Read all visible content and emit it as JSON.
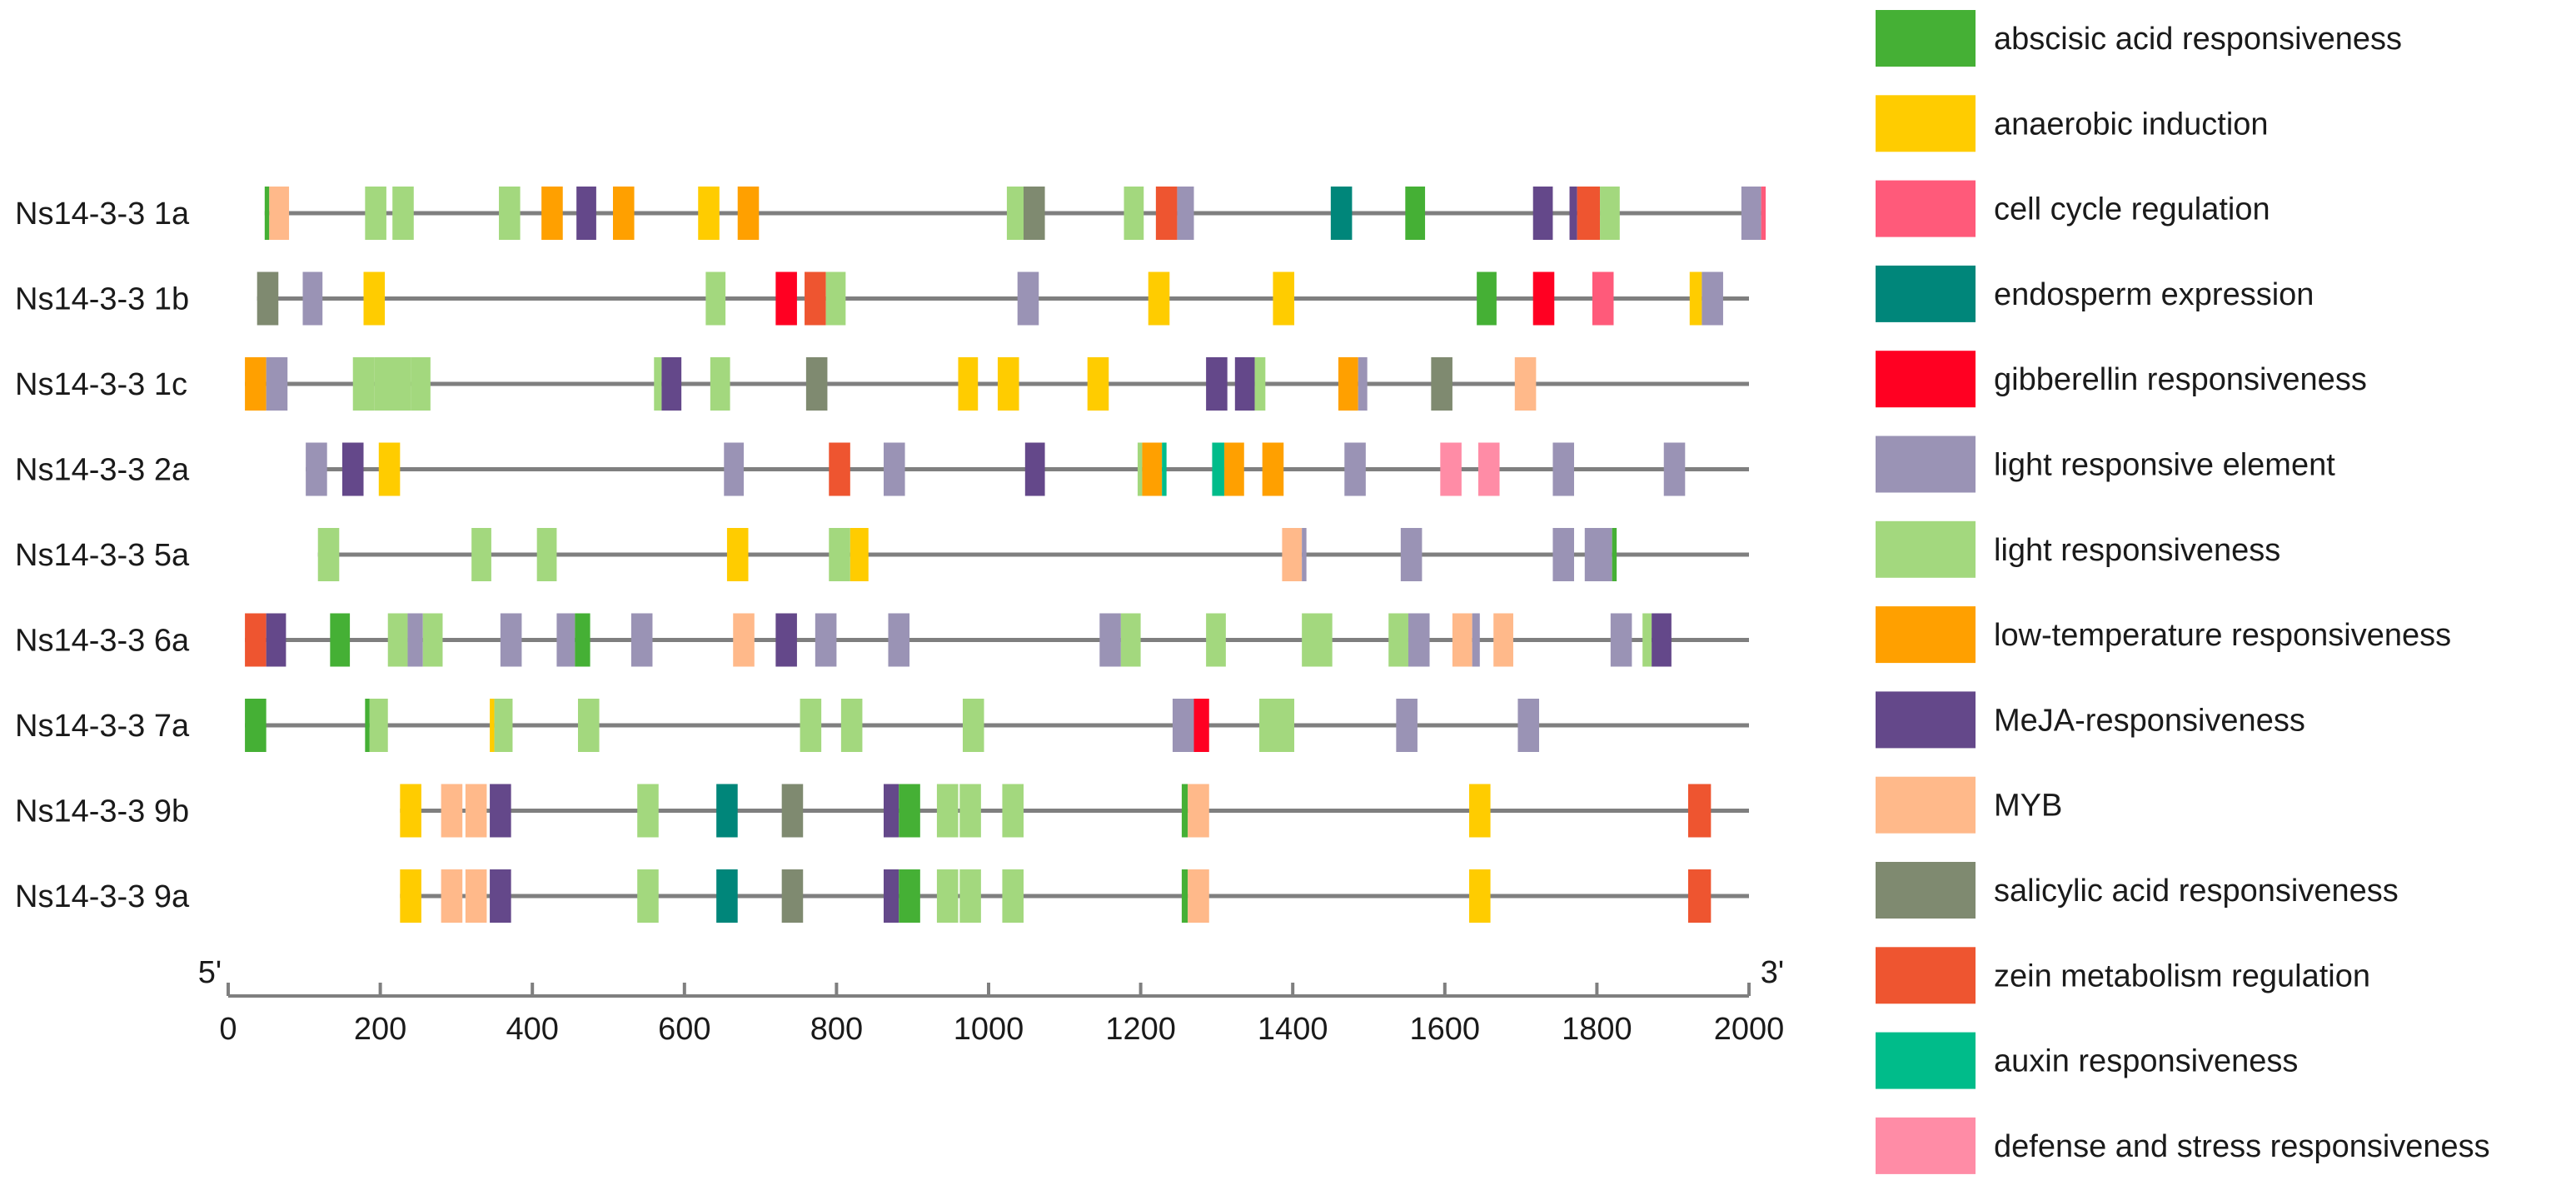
{
  "chart_data": {
    "type": "gene-element-map",
    "title": "",
    "xlabel": "",
    "ylabel": "",
    "xlim": [
      0,
      2000
    ],
    "x_ticks": [
      "0",
      "200",
      "400",
      "600",
      "800",
      "1000",
      "1200",
      "1400",
      "1600",
      "1800",
      "2000"
    ],
    "five_prime_label": "5'",
    "three_prime_label": "3'",
    "legend": [
      {
        "key": "aba",
        "label": "abscisic acid responsiveness",
        "color": "#45B035"
      },
      {
        "key": "anaer",
        "label": "anaerobic induction",
        "color": "#FFCC00"
      },
      {
        "key": "cell",
        "label": "cell cycle regulation",
        "color": "#FF5A7A"
      },
      {
        "key": "endo",
        "label": "endosperm expression",
        "color": "#00867A"
      },
      {
        "key": "gib",
        "label": "gibberellin responsiveness",
        "color": "#FF0022"
      },
      {
        "key": "lre",
        "label": "light responsive element",
        "color": "#9A93B5"
      },
      {
        "key": "light",
        "label": "light responsiveness",
        "color": "#A3D87E"
      },
      {
        "key": "lowt",
        "label": "low-temperature responsiveness",
        "color": "#FFA000"
      },
      {
        "key": "meja",
        "label": "MeJA-responsiveness",
        "color": "#64488A"
      },
      {
        "key": "myb",
        "label": "MYB",
        "color": "#FFB98A"
      },
      {
        "key": "sa",
        "label": "salicylic acid responsiveness",
        "color": "#7F8A70"
      },
      {
        "key": "zein",
        "label": "zein metabolism regulation",
        "color": "#EE5530"
      },
      {
        "key": "auxin",
        "label": "auxin responsiveness",
        "color": "#00BC8A"
      },
      {
        "key": "defense",
        "label": "defense and stress responsiveness",
        "color": "#FF8CA6"
      }
    ],
    "rows": [
      {
        "name": "Ns14-3-3 1a",
        "start": 48,
        "end": 2020,
        "elements": [
          {
            "type": "aba",
            "start": 48,
            "end": 54
          },
          {
            "type": "myb",
            "start": 54,
            "end": 80
          },
          {
            "type": "light",
            "start": 180,
            "end": 208
          },
          {
            "type": "light",
            "start": 216,
            "end": 244
          },
          {
            "type": "light",
            "start": 356,
            "end": 384
          },
          {
            "type": "lowt",
            "start": 412,
            "end": 440
          },
          {
            "type": "meja",
            "start": 458,
            "end": 484
          },
          {
            "type": "lowt",
            "start": 506,
            "end": 534
          },
          {
            "type": "anaer",
            "start": 618,
            "end": 646
          },
          {
            "type": "lowt",
            "start": 670,
            "end": 698
          },
          {
            "type": "light",
            "start": 1024,
            "end": 1046
          },
          {
            "type": "sa",
            "start": 1046,
            "end": 1074
          },
          {
            "type": "light",
            "start": 1178,
            "end": 1204
          },
          {
            "type": "zein",
            "start": 1220,
            "end": 1248
          },
          {
            "type": "lre",
            "start": 1248,
            "end": 1270
          },
          {
            "type": "endo",
            "start": 1450,
            "end": 1478
          },
          {
            "type": "aba",
            "start": 1548,
            "end": 1574
          },
          {
            "type": "meja",
            "start": 1716,
            "end": 1742
          },
          {
            "type": "meja",
            "start": 1764,
            "end": 1774
          },
          {
            "type": "zein",
            "start": 1774,
            "end": 1804
          },
          {
            "type": "light",
            "start": 1804,
            "end": 1830
          },
          {
            "type": "lre",
            "start": 1990,
            "end": 2016
          },
          {
            "type": "cell",
            "start": 2016,
            "end": 2022
          }
        ]
      },
      {
        "name": "Ns14-3-3 1b",
        "start": 38,
        "end": 2000,
        "elements": [
          {
            "type": "sa",
            "start": 38,
            "end": 66
          },
          {
            "type": "lre",
            "start": 98,
            "end": 124
          },
          {
            "type": "anaer",
            "start": 178,
            "end": 206
          },
          {
            "type": "light",
            "start": 628,
            "end": 654
          },
          {
            "type": "gib",
            "start": 720,
            "end": 748
          },
          {
            "type": "zein",
            "start": 758,
            "end": 786
          },
          {
            "type": "light",
            "start": 786,
            "end": 812
          },
          {
            "type": "lre",
            "start": 1038,
            "end": 1066
          },
          {
            "type": "anaer",
            "start": 1210,
            "end": 1238
          },
          {
            "type": "anaer",
            "start": 1374,
            "end": 1402
          },
          {
            "type": "aba",
            "start": 1642,
            "end": 1668
          },
          {
            "type": "gib",
            "start": 1716,
            "end": 1744
          },
          {
            "type": "cell",
            "start": 1794,
            "end": 1822
          },
          {
            "type": "anaer",
            "start": 1922,
            "end": 1938
          },
          {
            "type": "lre",
            "start": 1938,
            "end": 1966
          }
        ]
      },
      {
        "name": "Ns14-3-3 1c",
        "start": 22,
        "end": 2000,
        "elements": [
          {
            "type": "lowt",
            "start": 22,
            "end": 50
          },
          {
            "type": "lre",
            "start": 50,
            "end": 78
          },
          {
            "type": "light",
            "start": 164,
            "end": 192
          },
          {
            "type": "light",
            "start": 192,
            "end": 240
          },
          {
            "type": "light",
            "start": 240,
            "end": 266
          },
          {
            "type": "light",
            "start": 560,
            "end": 570
          },
          {
            "type": "meja",
            "start": 570,
            "end": 596
          },
          {
            "type": "light",
            "start": 634,
            "end": 660
          },
          {
            "type": "sa",
            "start": 760,
            "end": 788
          },
          {
            "type": "anaer",
            "start": 960,
            "end": 986
          },
          {
            "type": "anaer",
            "start": 1012,
            "end": 1040
          },
          {
            "type": "anaer",
            "start": 1130,
            "end": 1158
          },
          {
            "type": "meja",
            "start": 1286,
            "end": 1314
          },
          {
            "type": "meja",
            "start": 1324,
            "end": 1350
          },
          {
            "type": "light",
            "start": 1350,
            "end": 1364
          },
          {
            "type": "lowt",
            "start": 1460,
            "end": 1486
          },
          {
            "type": "lre",
            "start": 1486,
            "end": 1498
          },
          {
            "type": "sa",
            "start": 1582,
            "end": 1610
          },
          {
            "type": "myb",
            "start": 1692,
            "end": 1720
          }
        ]
      },
      {
        "name": "Ns14-3-3 2a",
        "start": 102,
        "end": 2000,
        "elements": [
          {
            "type": "lre",
            "start": 102,
            "end": 130
          },
          {
            "type": "meja",
            "start": 150,
            "end": 178
          },
          {
            "type": "anaer",
            "start": 198,
            "end": 226
          },
          {
            "type": "lre",
            "start": 652,
            "end": 678
          },
          {
            "type": "zein",
            "start": 790,
            "end": 818
          },
          {
            "type": "lre",
            "start": 862,
            "end": 890
          },
          {
            "type": "meja",
            "start": 1048,
            "end": 1074
          },
          {
            "type": "light",
            "start": 1196,
            "end": 1202
          },
          {
            "type": "lowt",
            "start": 1202,
            "end": 1228
          },
          {
            "type": "auxin",
            "start": 1228,
            "end": 1234
          },
          {
            "type": "auxin",
            "start": 1294,
            "end": 1310
          },
          {
            "type": "lowt",
            "start": 1310,
            "end": 1336
          },
          {
            "type": "lowt",
            "start": 1360,
            "end": 1388
          },
          {
            "type": "lre",
            "start": 1468,
            "end": 1496
          },
          {
            "type": "defense",
            "start": 1594,
            "end": 1622
          },
          {
            "type": "defense",
            "start": 1644,
            "end": 1672
          },
          {
            "type": "lre",
            "start": 1742,
            "end": 1770
          },
          {
            "type": "lre",
            "start": 1888,
            "end": 1916
          }
        ]
      },
      {
        "name": "Ns14-3-3 5a",
        "start": 118,
        "end": 2000,
        "elements": [
          {
            "type": "light",
            "start": 118,
            "end": 146
          },
          {
            "type": "light",
            "start": 320,
            "end": 346
          },
          {
            "type": "light",
            "start": 406,
            "end": 432
          },
          {
            "type": "anaer",
            "start": 656,
            "end": 684
          },
          {
            "type": "light",
            "start": 790,
            "end": 818
          },
          {
            "type": "anaer",
            "start": 818,
            "end": 842
          },
          {
            "type": "myb",
            "start": 1386,
            "end": 1412
          },
          {
            "type": "lre",
            "start": 1412,
            "end": 1418
          },
          {
            "type": "lre",
            "start": 1542,
            "end": 1570
          },
          {
            "type": "lre",
            "start": 1742,
            "end": 1770
          },
          {
            "type": "lre",
            "start": 1784,
            "end": 1820
          },
          {
            "type": "aba",
            "start": 1820,
            "end": 1826
          }
        ]
      },
      {
        "name": "Ns14-3-3 6a",
        "start": 22,
        "end": 2000,
        "elements": [
          {
            "type": "zein",
            "start": 22,
            "end": 50
          },
          {
            "type": "meja",
            "start": 50,
            "end": 76
          },
          {
            "type": "aba",
            "start": 134,
            "end": 160
          },
          {
            "type": "light",
            "start": 210,
            "end": 236
          },
          {
            "type": "lre",
            "start": 236,
            "end": 256
          },
          {
            "type": "light",
            "start": 256,
            "end": 282
          },
          {
            "type": "lre",
            "start": 358,
            "end": 386
          },
          {
            "type": "lre",
            "start": 432,
            "end": 456
          },
          {
            "type": "aba",
            "start": 456,
            "end": 476
          },
          {
            "type": "lre",
            "start": 530,
            "end": 558
          },
          {
            "type": "myb",
            "start": 664,
            "end": 692
          },
          {
            "type": "meja",
            "start": 720,
            "end": 748
          },
          {
            "type": "lre",
            "start": 772,
            "end": 800
          },
          {
            "type": "lre",
            "start": 868,
            "end": 896
          },
          {
            "type": "lre",
            "start": 1146,
            "end": 1174
          },
          {
            "type": "light",
            "start": 1174,
            "end": 1200
          },
          {
            "type": "light",
            "start": 1286,
            "end": 1312
          },
          {
            "type": "light",
            "start": 1412,
            "end": 1452
          },
          {
            "type": "light",
            "start": 1526,
            "end": 1552
          },
          {
            "type": "lre",
            "start": 1552,
            "end": 1580
          },
          {
            "type": "myb",
            "start": 1610,
            "end": 1636
          },
          {
            "type": "lre",
            "start": 1636,
            "end": 1646
          },
          {
            "type": "myb",
            "start": 1664,
            "end": 1690
          },
          {
            "type": "lre",
            "start": 1818,
            "end": 1846
          },
          {
            "type": "light",
            "start": 1860,
            "end": 1872
          },
          {
            "type": "meja",
            "start": 1872,
            "end": 1898
          }
        ]
      },
      {
        "name": "Ns14-3-3 7a",
        "start": 22,
        "end": 2000,
        "elements": [
          {
            "type": "aba",
            "start": 22,
            "end": 50
          },
          {
            "type": "aba",
            "start": 180,
            "end": 186
          },
          {
            "type": "light",
            "start": 186,
            "end": 210
          },
          {
            "type": "anaer",
            "start": 344,
            "end": 350
          },
          {
            "type": "light",
            "start": 350,
            "end": 374
          },
          {
            "type": "light",
            "start": 460,
            "end": 488
          },
          {
            "type": "light",
            "start": 752,
            "end": 780
          },
          {
            "type": "light",
            "start": 806,
            "end": 834
          },
          {
            "type": "light",
            "start": 966,
            "end": 994
          },
          {
            "type": "lre",
            "start": 1242,
            "end": 1270
          },
          {
            "type": "gib",
            "start": 1270,
            "end": 1290
          },
          {
            "type": "light",
            "start": 1356,
            "end": 1402
          },
          {
            "type": "lre",
            "start": 1536,
            "end": 1564
          },
          {
            "type": "lre",
            "start": 1696,
            "end": 1724
          }
        ]
      },
      {
        "name": "Ns14-3-3 9b",
        "start": 226,
        "end": 2000,
        "elements": [
          {
            "type": "anaer",
            "start": 226,
            "end": 254
          },
          {
            "type": "myb",
            "start": 280,
            "end": 308
          },
          {
            "type": "myb",
            "start": 312,
            "end": 340
          },
          {
            "type": "meja",
            "start": 344,
            "end": 372
          },
          {
            "type": "light",
            "start": 538,
            "end": 566
          },
          {
            "type": "endo",
            "start": 642,
            "end": 670
          },
          {
            "type": "sa",
            "start": 728,
            "end": 756
          },
          {
            "type": "meja",
            "start": 862,
            "end": 882
          },
          {
            "type": "aba",
            "start": 882,
            "end": 910
          },
          {
            "type": "light",
            "start": 932,
            "end": 960
          },
          {
            "type": "light",
            "start": 962,
            "end": 990
          },
          {
            "type": "light",
            "start": 1018,
            "end": 1046
          },
          {
            "type": "aba",
            "start": 1254,
            "end": 1262
          },
          {
            "type": "myb",
            "start": 1262,
            "end": 1290
          },
          {
            "type": "anaer",
            "start": 1632,
            "end": 1660
          },
          {
            "type": "zein",
            "start": 1920,
            "end": 1950
          }
        ]
      },
      {
        "name": "Ns14-3-3 9a",
        "start": 226,
        "end": 2000,
        "elements": [
          {
            "type": "anaer",
            "start": 226,
            "end": 254
          },
          {
            "type": "myb",
            "start": 280,
            "end": 308
          },
          {
            "type": "myb",
            "start": 312,
            "end": 340
          },
          {
            "type": "meja",
            "start": 344,
            "end": 372
          },
          {
            "type": "light",
            "start": 538,
            "end": 566
          },
          {
            "type": "endo",
            "start": 642,
            "end": 670
          },
          {
            "type": "sa",
            "start": 728,
            "end": 756
          },
          {
            "type": "meja",
            "start": 862,
            "end": 882
          },
          {
            "type": "aba",
            "start": 882,
            "end": 910
          },
          {
            "type": "light",
            "start": 932,
            "end": 960
          },
          {
            "type": "light",
            "start": 962,
            "end": 990
          },
          {
            "type": "light",
            "start": 1018,
            "end": 1046
          },
          {
            "type": "aba",
            "start": 1254,
            "end": 1262
          },
          {
            "type": "myb",
            "start": 1262,
            "end": 1290
          },
          {
            "type": "anaer",
            "start": 1632,
            "end": 1660
          },
          {
            "type": "zein",
            "start": 1920,
            "end": 1950
          }
        ]
      }
    ]
  }
}
